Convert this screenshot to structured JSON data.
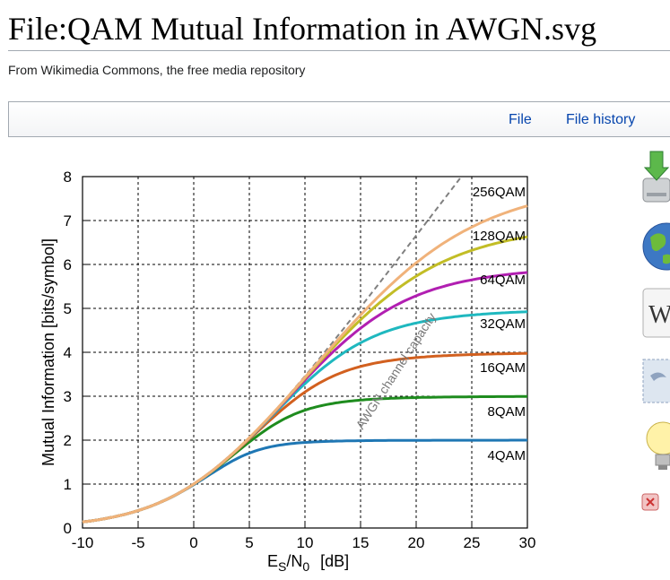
{
  "page": {
    "title": "File:QAM Mutual Information in AWGN.svg",
    "subtitle": "From Wikimedia Commons, the free media repository"
  },
  "tabs": [
    {
      "label": "File"
    },
    {
      "label": "File history"
    }
  ],
  "side_icons": [
    "download-icon",
    "globe-icon",
    "wikipedia-icon",
    "postcard-icon",
    "lightbulb-icon",
    "close-icon"
  ],
  "chart_data": {
    "type": "line",
    "xlabel_main": "E",
    "xlabel_sub1": "S",
    "xlabel_slash": "/N",
    "xlabel_sub2": "0",
    "xlabel_unit": "[dB]",
    "ylabel": "Mutual Information [bits/symbol]",
    "xlim": [
      -10,
      30
    ],
    "ylim": [
      0,
      8
    ],
    "x_ticks": [
      "-10",
      "-5",
      "0",
      "5",
      "10",
      "15",
      "20",
      "25",
      "30"
    ],
    "y_ticks": [
      "0",
      "1",
      "2",
      "3",
      "4",
      "5",
      "6",
      "7",
      "8"
    ],
    "grid": true,
    "capacity_label": "AWGN channel capacity",
    "series": [
      {
        "name": "4QAM",
        "bits": 2,
        "color": "#1f77b4"
      },
      {
        "name": "8QAM",
        "bits": 3,
        "color": "#1e8c1e"
      },
      {
        "name": "16QAM",
        "bits": 4,
        "color": "#d2601f"
      },
      {
        "name": "32QAM",
        "bits": 5,
        "color": "#1fb8bf"
      },
      {
        "name": "64QAM",
        "bits": 6,
        "color": "#b11fb1"
      },
      {
        "name": "128QAM",
        "bits": 7,
        "color": "#c2bd26"
      },
      {
        "name": "256QAM",
        "bits": 8,
        "color": "#f0b27a"
      }
    ]
  }
}
